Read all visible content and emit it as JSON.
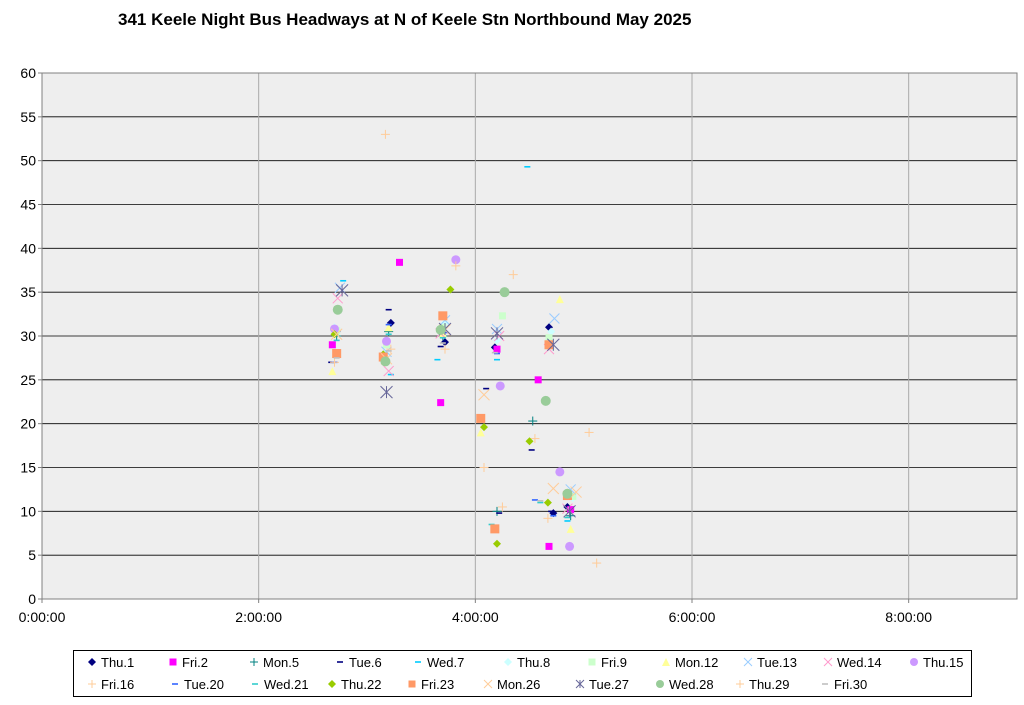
{
  "chart_data": {
    "type": "scatter",
    "title": "341 Keele Night Bus Headways at N of Keele Stn Northbound May 2025",
    "xlabel": "",
    "ylabel": "",
    "x_unit": "hours",
    "xlim": [
      0,
      9
    ],
    "ylim": [
      0,
      60
    ],
    "x_ticks": [
      0,
      2,
      4,
      6,
      8
    ],
    "x_tick_labels": [
      "0:00:00",
      "2:00:00",
      "4:00:00",
      "6:00:00",
      "8:00:00"
    ],
    "y_ticks": [
      0,
      5,
      10,
      15,
      20,
      25,
      30,
      35,
      40,
      45,
      50,
      55,
      60
    ],
    "y_tick_labels": [
      "0",
      "5",
      "10",
      "15",
      "20",
      "25",
      "30",
      "35",
      "40",
      "45",
      "50",
      "55",
      "60"
    ],
    "grid": true,
    "legend_position": "bottom",
    "series": [
      {
        "name": "Thu.1",
        "marker": "diamond",
        "color": "#000080",
        "points": [
          [
            2.72,
            30.5
          ],
          [
            3.22,
            31.5
          ],
          [
            3.72,
            29.3
          ],
          [
            4.18,
            28.7
          ],
          [
            4.68,
            31.0
          ],
          [
            4.72,
            9.8
          ],
          [
            4.85,
            10.5
          ]
        ]
      },
      {
        "name": "Fri.2",
        "marker": "square",
        "color": "#ff00ff",
        "points": [
          [
            2.68,
            29.0
          ],
          [
            3.3,
            38.4
          ],
          [
            3.68,
            22.4
          ],
          [
            4.2,
            28.5
          ],
          [
            4.58,
            25.0
          ],
          [
            4.68,
            6.0
          ],
          [
            4.88,
            10.2
          ]
        ]
      },
      {
        "name": "Mon.5",
        "marker": "plus",
        "color": "#008080",
        "points": [
          [
            2.72,
            30.0
          ],
          [
            3.2,
            30.5
          ],
          [
            3.7,
            30.0
          ],
          [
            4.2,
            10.0
          ],
          [
            4.53,
            20.3
          ],
          [
            4.88,
            9.5
          ]
        ]
      },
      {
        "name": "Tue.6",
        "marker": "dash",
        "color": "#000080",
        "points": [
          [
            2.67,
            27.0
          ],
          [
            3.2,
            33.0
          ],
          [
            3.68,
            28.8
          ],
          [
            4.1,
            24.0
          ],
          [
            4.22,
            9.8
          ],
          [
            4.52,
            17.0
          ],
          [
            4.7,
            10.0
          ]
        ]
      },
      {
        "name": "Wed.7",
        "marker": "dash",
        "color": "#00ccff",
        "points": [
          [
            2.78,
            36.3
          ],
          [
            3.22,
            25.6
          ],
          [
            3.65,
            27.3
          ],
          [
            4.2,
            27.3
          ],
          [
            4.48,
            49.3
          ],
          [
            4.85,
            8.9
          ]
        ]
      },
      {
        "name": "Thu.8",
        "marker": "diamond",
        "color": "#ccffff",
        "points": [
          [
            2.7,
            31.0
          ],
          [
            3.17,
            28.0
          ],
          [
            3.72,
            31.5
          ],
          [
            4.2,
            29.5
          ],
          [
            4.7,
            30.5
          ],
          [
            4.9,
            11.5
          ]
        ]
      },
      {
        "name": "Fri.9",
        "marker": "square",
        "color": "#ccffcc",
        "points": [
          [
            2.72,
            30.6
          ],
          [
            3.18,
            29.0
          ],
          [
            3.7,
            31.0
          ],
          [
            4.25,
            32.3
          ],
          [
            4.68,
            29.8
          ],
          [
            4.9,
            11.7
          ]
        ]
      },
      {
        "name": "Mon.12",
        "marker": "triangle",
        "color": "#ffff99",
        "points": [
          [
            2.68,
            26.0
          ],
          [
            3.2,
            31.0
          ],
          [
            3.7,
            30.3
          ],
          [
            4.05,
            19.0
          ],
          [
            4.78,
            34.2
          ],
          [
            4.88,
            8.0
          ]
        ]
      },
      {
        "name": "Tue.13",
        "marker": "x",
        "color": "#99ccff",
        "points": [
          [
            2.75,
            35.5
          ],
          [
            3.18,
            28.2
          ],
          [
            3.72,
            31.8
          ],
          [
            4.2,
            30.8
          ],
          [
            4.73,
            32.0
          ],
          [
            4.88,
            12.5
          ]
        ]
      },
      {
        "name": "Wed.14",
        "marker": "x",
        "color": "#ff99cc",
        "points": [
          [
            2.73,
            34.3
          ],
          [
            3.2,
            26.0
          ],
          [
            3.68,
            30.3
          ],
          [
            4.22,
            30.0
          ],
          [
            4.68,
            28.5
          ],
          [
            4.85,
            10.3
          ]
        ]
      },
      {
        "name": "Thu.15",
        "marker": "circle",
        "color": "#cc99ff",
        "points": [
          [
            2.7,
            30.8
          ],
          [
            3.18,
            29.4
          ],
          [
            3.82,
            38.7
          ],
          [
            4.23,
            24.3
          ],
          [
            4.78,
            14.5
          ],
          [
            4.87,
            6.0
          ]
        ]
      },
      {
        "name": "Fri.16",
        "marker": "plus",
        "color": "#ffcc99",
        "points": [
          [
            3.17,
            53.0
          ],
          [
            3.82,
            38.0
          ],
          [
            4.08,
            15.0
          ],
          [
            4.55,
            18.3
          ],
          [
            5.05,
            19.0
          ],
          [
            5.12,
            4.1
          ]
        ]
      },
      {
        "name": "Tue.20",
        "marker": "dash",
        "color": "#3366ff",
        "points": [
          [
            2.7,
            27.0
          ],
          [
            3.2,
            31.3
          ],
          [
            3.72,
            30.4
          ],
          [
            4.2,
            28.0
          ],
          [
            4.55,
            11.3
          ],
          [
            4.72,
            9.5
          ]
        ]
      },
      {
        "name": "Wed.21",
        "marker": "dash",
        "color": "#33cccc",
        "points": [
          [
            2.72,
            29.5
          ],
          [
            3.2,
            30.2
          ],
          [
            3.7,
            29.8
          ],
          [
            4.15,
            8.5
          ],
          [
            4.6,
            11.0
          ],
          [
            4.85,
            9.3
          ]
        ]
      },
      {
        "name": "Thu.22",
        "marker": "diamond",
        "color": "#99cc00",
        "points": [
          [
            2.7,
            30.2
          ],
          [
            3.15,
            27.9
          ],
          [
            3.77,
            35.3
          ],
          [
            4.08,
            19.6
          ],
          [
            4.2,
            6.3
          ],
          [
            4.5,
            18.0
          ],
          [
            4.67,
            11.0
          ]
        ]
      },
      {
        "name": "Fri.23",
        "marker": "square",
        "color": "#ff9966",
        "points": [
          [
            2.72,
            28.0
          ],
          [
            3.15,
            27.6
          ],
          [
            3.7,
            32.3
          ],
          [
            4.05,
            20.6
          ],
          [
            4.18,
            8.0
          ],
          [
            4.68,
            29.0
          ],
          [
            4.85,
            11.8
          ]
        ]
      },
      {
        "name": "Mon.26",
        "marker": "x",
        "color": "#ffcc99",
        "points": [
          [
            2.72,
            30.2
          ],
          [
            3.18,
            27.4
          ],
          [
            3.72,
            30.7
          ],
          [
            4.08,
            23.3
          ],
          [
            4.72,
            12.6
          ],
          [
            4.93,
            12.2
          ]
        ]
      },
      {
        "name": "Tue.27",
        "marker": "asterisk",
        "color": "#666699",
        "points": [
          [
            2.77,
            35.2
          ],
          [
            3.18,
            23.6
          ],
          [
            3.72,
            30.8
          ],
          [
            4.2,
            30.3
          ],
          [
            4.72,
            29.0
          ],
          [
            4.87,
            10.0
          ]
        ]
      },
      {
        "name": "Wed.28",
        "marker": "circle",
        "color": "#99cc99",
        "points": [
          [
            2.73,
            33.0
          ],
          [
            3.17,
            27.1
          ],
          [
            3.68,
            30.7
          ],
          [
            4.27,
            35.0
          ],
          [
            4.65,
            22.6
          ],
          [
            4.85,
            12.0
          ]
        ]
      },
      {
        "name": "Thu.29",
        "marker": "plus",
        "color": "#ffcc99",
        "points": [
          [
            2.7,
            27.0
          ],
          [
            3.22,
            28.5
          ],
          [
            3.72,
            28.5
          ],
          [
            4.35,
            37.0
          ],
          [
            4.67,
            9.2
          ],
          [
            4.25,
            10.5
          ]
        ]
      },
      {
        "name": "Fri.30",
        "marker": "dash",
        "color": "#c0c0c0",
        "points": [
          [
            2.72,
            27.5
          ],
          [
            3.2,
            28.3
          ],
          [
            3.7,
            29.2
          ],
          [
            4.18,
            28.1
          ],
          [
            4.6,
            11.2
          ]
        ]
      }
    ]
  },
  "legend": {
    "items": [
      "Thu.1",
      "Fri.2",
      "Mon.5",
      "Tue.6",
      "Wed.7",
      "Thu.8",
      "Fri.9",
      "Mon.12",
      "Tue.13",
      "Wed.14",
      "Thu.15",
      "Fri.16",
      "Tue.20",
      "Wed.21",
      "Thu.22",
      "Fri.23",
      "Mon.26",
      "Tue.27",
      "Wed.28",
      "Thu.29",
      "Fri.30"
    ]
  }
}
